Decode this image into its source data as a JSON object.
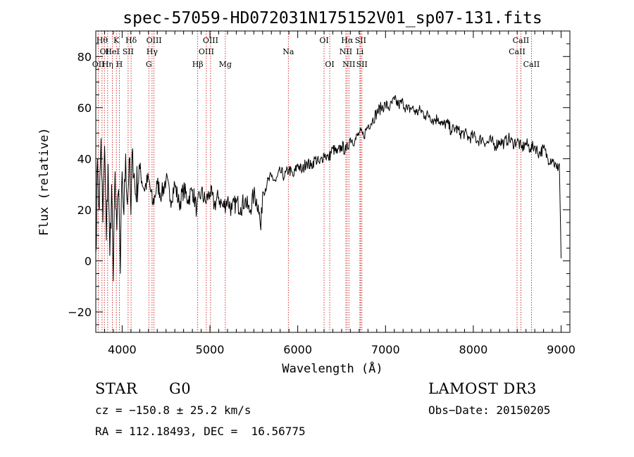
{
  "chart_data": {
    "type": "line",
    "title": "spec-57059-HD072031N175152V01_sp07-131.fits",
    "xlabel": "Wavelength (Å)",
    "ylabel": "Flux (relative)",
    "xlim": [
      3700,
      9100
    ],
    "ylim": [
      -28,
      90
    ],
    "x_ticks": [
      4000,
      5000,
      6000,
      7000,
      8000,
      9000
    ],
    "y_ticks": [
      -20,
      0,
      20,
      40,
      60,
      80
    ],
    "grid": false,
    "series": [
      {
        "points": [
          [
            3700,
            3
          ],
          [
            3720,
            40
          ],
          [
            3740,
            20
          ],
          [
            3760,
            48
          ],
          [
            3780,
            15
          ],
          [
            3800,
            45
          ],
          [
            3820,
            8
          ],
          [
            3840,
            38
          ],
          [
            3860,
            2
          ],
          [
            3880,
            30
          ],
          [
            3900,
            -8
          ],
          [
            3920,
            35
          ],
          [
            3940,
            12
          ],
          [
            3960,
            28
          ],
          [
            3980,
            -5
          ],
          [
            4000,
            35
          ],
          [
            4020,
            18
          ],
          [
            4040,
            42
          ],
          [
            4060,
            22
          ],
          [
            4080,
            40
          ],
          [
            4100,
            18
          ],
          [
            4120,
            44
          ],
          [
            4150,
            26
          ],
          [
            4200,
            36
          ],
          [
            4250,
            28
          ],
          [
            4300,
            32
          ],
          [
            4350,
            22
          ],
          [
            4400,
            30
          ],
          [
            4450,
            26
          ],
          [
            4500,
            32
          ],
          [
            4550,
            24
          ],
          [
            4600,
            30
          ],
          [
            4650,
            22
          ],
          [
            4700,
            28
          ],
          [
            4750,
            24
          ],
          [
            4800,
            28
          ],
          [
            4850,
            20
          ],
          [
            4900,
            27
          ],
          [
            4950,
            23
          ],
          [
            5000,
            27
          ],
          [
            5050,
            22
          ],
          [
            5100,
            25
          ],
          [
            5150,
            21
          ],
          [
            5200,
            24
          ],
          [
            5250,
            20
          ],
          [
            5300,
            23
          ],
          [
            5350,
            21
          ],
          [
            5400,
            24
          ],
          [
            5450,
            19
          ],
          [
            5500,
            26
          ],
          [
            5550,
            22
          ],
          [
            5580,
            12
          ],
          [
            5600,
            27
          ],
          [
            5650,
            30
          ],
          [
            5700,
            33
          ],
          [
            5750,
            31
          ],
          [
            5800,
            35
          ],
          [
            5850,
            33
          ],
          [
            5900,
            36
          ],
          [
            5950,
            33
          ],
          [
            6000,
            38
          ],
          [
            6050,
            35
          ],
          [
            6100,
            39
          ],
          [
            6150,
            37
          ],
          [
            6200,
            40
          ],
          [
            6250,
            38
          ],
          [
            6300,
            42
          ],
          [
            6350,
            40
          ],
          [
            6400,
            44
          ],
          [
            6450,
            42
          ],
          [
            6500,
            45
          ],
          [
            6550,
            43
          ],
          [
            6600,
            48
          ],
          [
            6650,
            47
          ],
          [
            6700,
            50
          ],
          [
            6750,
            49
          ],
          [
            6800,
            53
          ],
          [
            6850,
            55
          ],
          [
            6900,
            58
          ],
          [
            6950,
            60
          ],
          [
            7000,
            61
          ],
          [
            7050,
            60
          ],
          [
            7100,
            63
          ],
          [
            7150,
            61
          ],
          [
            7200,
            62
          ],
          [
            7250,
            59
          ],
          [
            7300,
            60
          ],
          [
            7350,
            58
          ],
          [
            7400,
            59
          ],
          [
            7450,
            57
          ],
          [
            7500,
            57
          ],
          [
            7550,
            55
          ],
          [
            7600,
            56
          ],
          [
            7650,
            53
          ],
          [
            7700,
            54
          ],
          [
            7750,
            51
          ],
          [
            7800,
            52
          ],
          [
            7850,
            50
          ],
          [
            7900,
            50
          ],
          [
            7950,
            48
          ],
          [
            8000,
            49
          ],
          [
            8050,
            47
          ],
          [
            8100,
            48
          ],
          [
            8150,
            46
          ],
          [
            8200,
            47
          ],
          [
            8250,
            45
          ],
          [
            8300,
            47
          ],
          [
            8350,
            46
          ],
          [
            8400,
            48
          ],
          [
            8450,
            46
          ],
          [
            8500,
            47
          ],
          [
            8550,
            44
          ],
          [
            8600,
            46
          ],
          [
            8650,
            44
          ],
          [
            8700,
            45
          ],
          [
            8750,
            42
          ],
          [
            8800,
            44
          ],
          [
            8850,
            40
          ],
          [
            8900,
            40
          ],
          [
            8950,
            36
          ],
          [
            8980,
            38
          ],
          [
            9000,
            1
          ]
        ]
      }
    ],
    "spectral_lines": [
      {
        "x": 3729,
        "label": "OII",
        "row": 2
      },
      {
        "x": 3771,
        "label": "Hθ",
        "row": 0
      },
      {
        "x": 3798,
        "label": "OI",
        "row": 1
      },
      {
        "x": 3835,
        "label": "Hη",
        "row": 2
      },
      {
        "x": 3889,
        "label": "HeI",
        "row": 1
      },
      {
        "x": 3934,
        "label": "K",
        "row": 0
      },
      {
        "x": 3968,
        "label": "H",
        "row": 2
      },
      {
        "x": 4068,
        "label": "SII",
        "row": 1
      },
      {
        "x": 4102,
        "label": "Hδ",
        "row": 0
      },
      {
        "x": 4304,
        "label": "G",
        "row": 2
      },
      {
        "x": 4341,
        "label": "Hγ",
        "row": 1
      },
      {
        "x": 4363,
        "label": "OIII",
        "row": 0
      },
      {
        "x": 4861,
        "label": "Hβ",
        "row": 2
      },
      {
        "x": 4959,
        "label": "OIII",
        "row": 1
      },
      {
        "x": 5007,
        "label": "OIII",
        "row": 0
      },
      {
        "x": 5175,
        "label": "Mg",
        "row": 2
      },
      {
        "x": 5893,
        "label": "Na",
        "row": 1
      },
      {
        "x": 6300,
        "label": "OI",
        "row": 0
      },
      {
        "x": 6364,
        "label": "OI",
        "row": 2
      },
      {
        "x": 6548,
        "label": "NII",
        "row": 1
      },
      {
        "x": 6563,
        "label": "Hα",
        "row": 0
      },
      {
        "x": 6583,
        "label": "NII",
        "row": 2
      },
      {
        "x": 6708,
        "label": "Li",
        "row": 1
      },
      {
        "x": 6716,
        "label": "SII",
        "row": 0
      },
      {
        "x": 6731,
        "label": "SII",
        "row": 2
      },
      {
        "x": 8498,
        "label": "CaII",
        "row": 1
      },
      {
        "x": 8542,
        "label": "CaII",
        "row": 0
      },
      {
        "x": 8662,
        "label": "CaII",
        "row": 2
      }
    ]
  },
  "info": {
    "object_type": "STAR",
    "subclass": "G0",
    "survey": "LAMOST DR3",
    "cz": "cz = −150.8 ± 25.2 km/s",
    "obs_date": "Obs−Date: 20150205",
    "coords": "RA = 112.18493, DEC =  16.56775"
  },
  "colors": {
    "spectrum": "#000000",
    "line_marker": "#cc0000",
    "axes": "#000000"
  }
}
